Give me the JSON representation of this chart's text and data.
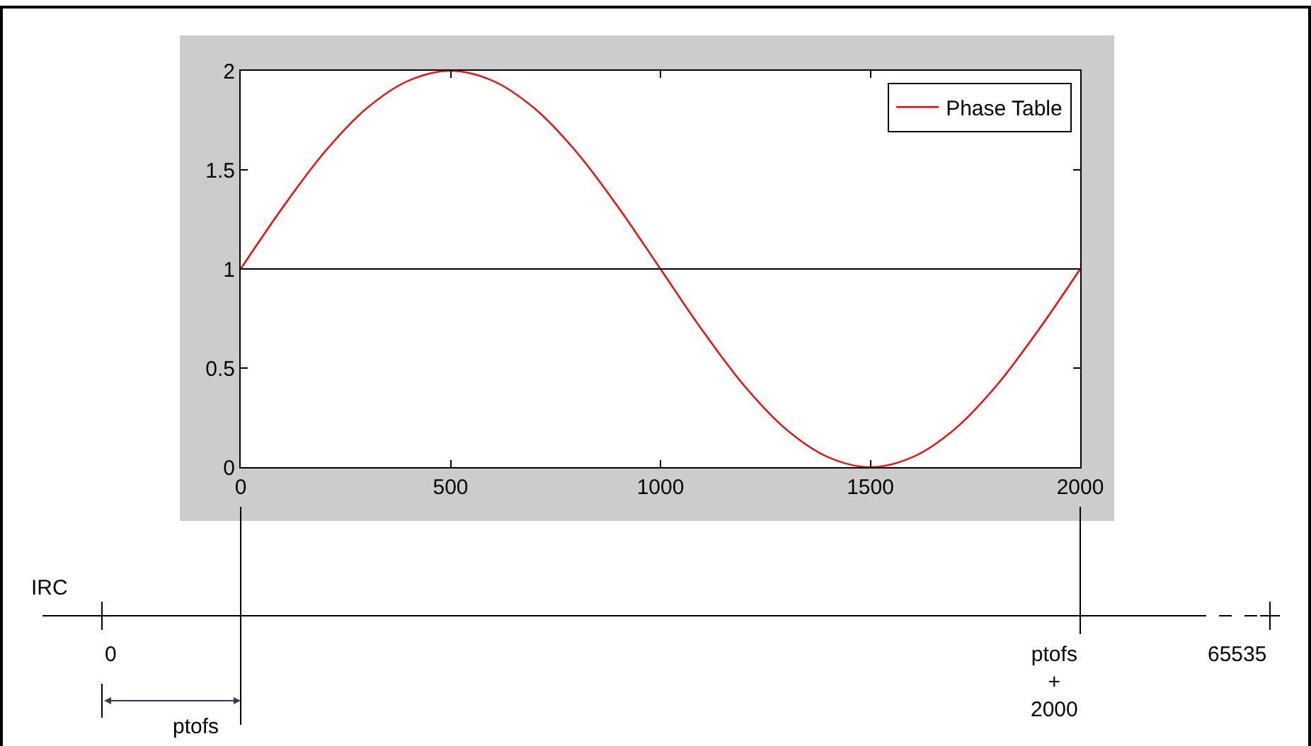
{
  "chart_data": {
    "type": "line",
    "x": [
      0,
      100,
      200,
      300,
      400,
      500,
      600,
      700,
      800,
      900,
      1000,
      1100,
      1200,
      1300,
      1400,
      1500,
      1600,
      1700,
      1800,
      1900,
      2000
    ],
    "series": [
      {
        "name": "Phase Table",
        "color": "#ff0000",
        "values": [
          1,
          1.31,
          1.59,
          1.81,
          1.95,
          2,
          1.95,
          1.81,
          1.59,
          1.31,
          1,
          0.69,
          0.41,
          0.19,
          0.05,
          0,
          0.05,
          0.19,
          0.41,
          0.69,
          1
        ]
      }
    ],
    "xlim": [
      0,
      2000
    ],
    "xticks": [
      0,
      500,
      1000,
      1500,
      2000
    ],
    "ylim": [
      0,
      2
    ],
    "yticks": [
      0,
      0.5,
      1,
      1.5,
      2
    ],
    "ref_lines": [
      {
        "axis": "y",
        "value": 1,
        "color": "#000000"
      }
    ],
    "legend": "top right",
    "annotations": [
      "IRC",
      "0",
      "ptofs",
      "ptofs\n+\n2000",
      "65535"
    ]
  }
}
